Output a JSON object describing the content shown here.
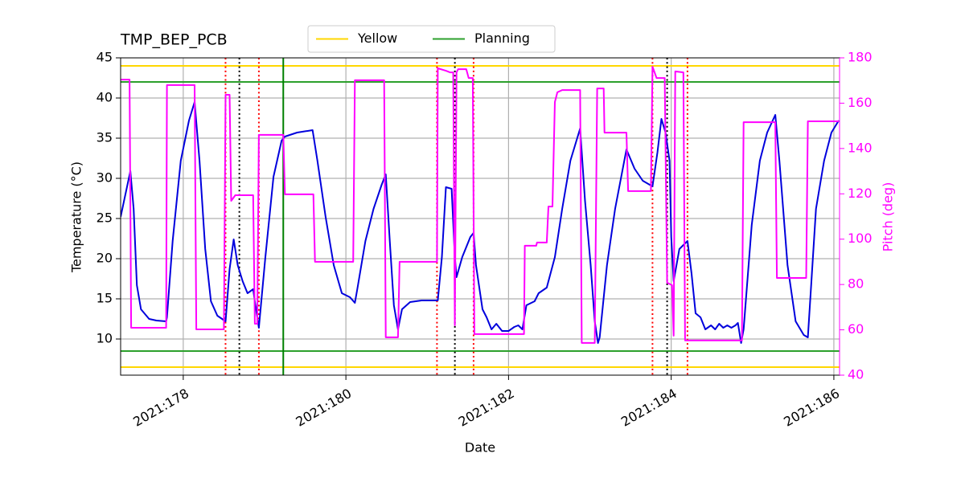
{
  "chart_data": {
    "type": "line",
    "title": "TMP_BEP_PCB",
    "xlabel": "Date",
    "ylabel": "Temperature (°C)",
    "y2label": "Pitch (deg)",
    "xlim": [
      177.23,
      186.07
    ],
    "ylim": [
      5.5,
      45
    ],
    "y2lim": [
      40,
      180
    ],
    "xticks": [
      {
        "value": 178,
        "label": "2021:178"
      },
      {
        "value": 180,
        "label": "2021:180"
      },
      {
        "value": 182,
        "label": "2021:182"
      },
      {
        "value": 184,
        "label": "2021:184"
      },
      {
        "value": 186,
        "label": "2021:186"
      }
    ],
    "yticks": [
      10,
      15,
      20,
      25,
      30,
      35,
      40,
      45
    ],
    "y2ticks": [
      40,
      60,
      80,
      100,
      120,
      140,
      160,
      180
    ],
    "grid": true,
    "legend": "top",
    "hlines": [
      {
        "name": "Yellow",
        "color": "#ffd700",
        "values": [
          44,
          6.5
        ]
      },
      {
        "name": "Planning",
        "color": "#2ca02c",
        "values": [
          42,
          8.5
        ]
      }
    ],
    "vlines": [
      {
        "color": "#008000",
        "style": "solid",
        "x": [
          179.23
        ]
      },
      {
        "color": "#ff0000",
        "style": "dotted",
        "x": [
          178.52,
          178.93,
          181.12,
          181.57,
          183.77,
          184.2
        ]
      },
      {
        "color": "#000000",
        "style": "dotted",
        "x": [
          178.69,
          181.34,
          183.95
        ]
      }
    ],
    "series": [
      {
        "color": "#0000dd",
        "x": [
          177.23,
          177.35,
          177.39,
          177.43,
          177.48,
          177.58,
          177.67,
          177.79,
          177.8,
          177.87,
          177.97,
          178.07,
          178.14,
          178.2,
          178.27,
          178.34,
          178.42,
          178.52,
          178.57,
          178.62,
          178.67,
          178.73,
          178.79,
          178.86,
          178.88,
          178.93,
          179.01,
          179.11,
          179.21,
          179.25,
          179.4,
          179.59,
          179.65,
          179.75,
          179.85,
          179.95,
          180.05,
          180.11,
          180.14,
          180.24,
          180.34,
          180.44,
          180.49,
          180.54,
          180.59,
          180.64,
          180.69,
          180.79,
          180.93,
          181.13,
          181.18,
          181.23,
          181.3,
          181.34,
          181.36,
          181.43,
          181.53,
          181.57,
          181.6,
          181.68,
          181.73,
          181.79,
          181.85,
          181.92,
          182,
          182.07,
          182.12,
          182.17,
          182.22,
          182.32,
          182.37,
          182.47,
          182.57,
          182.66,
          182.76,
          182.88,
          182.94,
          183.01,
          183.06,
          183.1,
          183.12,
          183.21,
          183.31,
          183.45,
          183.55,
          183.65,
          183.77,
          183.83,
          183.88,
          183.93,
          183.98,
          184,
          184.03,
          184.1,
          184.2,
          184.25,
          184.3,
          184.36,
          184.42,
          184.49,
          184.54,
          184.59,
          184.64,
          184.69,
          184.74,
          184.79,
          184.82,
          184.86,
          184.89,
          184.99,
          185.09,
          185.18,
          185.28,
          185.33,
          185.43,
          185.53,
          185.63,
          185.68,
          185.78,
          185.88,
          185.97,
          186.06
        ],
        "values": [
          25.2,
          30.9,
          26.2,
          16.7,
          13.7,
          12.5,
          12.3,
          12.2,
          12.7,
          22.2,
          32.2,
          37.2,
          39.5,
          32.2,
          21.2,
          14.7,
          12.9,
          12.2,
          18.7,
          22.4,
          19.2,
          17.2,
          15.7,
          16.2,
          14.7,
          11.4,
          20.2,
          30.2,
          34.7,
          35.2,
          35.7,
          36,
          32.2,
          25.2,
          19.2,
          15.7,
          15.2,
          14.5,
          16.2,
          22.2,
          26.2,
          29.2,
          30.5,
          22.2,
          14.2,
          11.2,
          13.7,
          14.6,
          14.8,
          14.8,
          20.2,
          28.9,
          28.7,
          20.2,
          17.7,
          20.2,
          22.7,
          23.2,
          19.2,
          13.7,
          12.7,
          11.2,
          11.9,
          11,
          11,
          11.5,
          11.7,
          11.2,
          14.2,
          14.7,
          15.7,
          16.4,
          20.2,
          26.2,
          32.2,
          36.2,
          27.2,
          19.2,
          12.2,
          9.5,
          10.2,
          19.2,
          26.2,
          33.6,
          31.2,
          29.7,
          29,
          33.2,
          37.4,
          35.7,
          32.2,
          22.7,
          17.2,
          21.2,
          22.2,
          18.2,
          13.2,
          12.7,
          11.2,
          11.7,
          11.2,
          11.9,
          11.4,
          11.7,
          11.4,
          11.7,
          12,
          9.5,
          11.2,
          24.2,
          32.2,
          35.7,
          37.9,
          32.2,
          19.2,
          12.2,
          10.5,
          10.2,
          26.2,
          32.2,
          35.7,
          37.2
        ]
      },
      {
        "color": "#ff00ff",
        "axis": "y2",
        "x": [
          177.23,
          177.34,
          177.36,
          177.79,
          177.8,
          178.14,
          178.16,
          178.5,
          178.52,
          178.57,
          178.59,
          178.64,
          178.86,
          178.88,
          178.91,
          178.93,
          179.23,
          179.25,
          179.6,
          179.62,
          180.09,
          180.11,
          180.47,
          180.49,
          180.64,
          180.66,
          181.12,
          181.13,
          181.23,
          181.28,
          181.32,
          181.34,
          181.36,
          181.38,
          181.48,
          181.51,
          181.56,
          181.58,
          182.19,
          182.2,
          182.34,
          182.35,
          182.47,
          182.49,
          182.54,
          182.57,
          182.6,
          182.66,
          182.88,
          182.9,
          183.06,
          183.09,
          183.17,
          183.18,
          183.45,
          183.47,
          183.75,
          183.77,
          183.82,
          183.92,
          183.95,
          184.01,
          184.03,
          184.05,
          184.15,
          184.17,
          184.84,
          184.87,
          184.89,
          185.28,
          185.3,
          185.66,
          185.68,
          186.06
        ],
        "values": [
          170.4,
          170.4,
          60.9,
          60.9,
          168,
          168,
          60.2,
          60.2,
          163.7,
          163.7,
          116.9,
          119.4,
          119.4,
          62.7,
          62.7,
          146,
          146,
          119.8,
          119.8,
          90,
          90,
          170.1,
          170.1,
          56.7,
          56.7,
          90,
          90,
          175.4,
          174.3,
          173.6,
          173.6,
          62,
          173.6,
          175,
          175,
          171.1,
          171.1,
          58.1,
          58.1,
          97.1,
          97.1,
          98.5,
          98.5,
          114.4,
          114.4,
          160.5,
          164.8,
          165.8,
          165.8,
          54.2,
          54.2,
          166.5,
          166.5,
          147,
          147,
          121.2,
          121.2,
          176.1,
          171.1,
          171.1,
          80.8,
          79.7,
          57.4,
          174,
          173.6,
          55.3,
          55.3,
          55.3,
          151.6,
          151.6,
          82.9,
          82.9,
          152,
          152
        ]
      }
    ]
  }
}
